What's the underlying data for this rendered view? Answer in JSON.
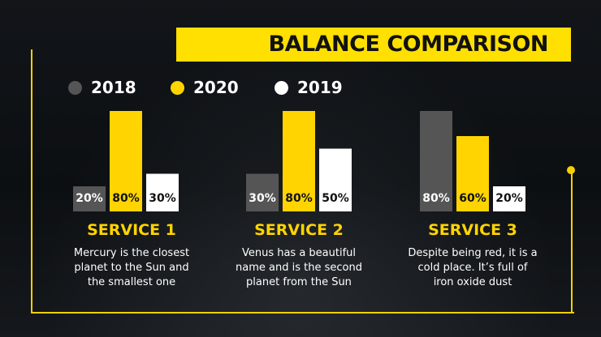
{
  "slide": {
    "title": "BALANCE COMPARISON",
    "colors": {
      "accent": "#ffd400",
      "title_bar": "#ffe000",
      "gray": "#555555",
      "white": "#ffffff",
      "background": "#0b0d10"
    }
  },
  "chart_data": {
    "type": "bar",
    "title": "BALANCE COMPARISON",
    "categories": [
      "SERVICE 1",
      "SERVICE 2",
      "SERVICE 3"
    ],
    "series": [
      {
        "name": "2018",
        "color": "#555555",
        "label_color": "#ffffff",
        "values": [
          20,
          30,
          80
        ],
        "labels": [
          "20%",
          "30%",
          "80%"
        ]
      },
      {
        "name": "2020",
        "color": "#ffd400",
        "label_color": "#111111",
        "values": [
          80,
          80,
          60
        ],
        "labels": [
          "80%",
          "80%",
          "60%"
        ]
      },
      {
        "name": "2019",
        "color": "#ffffff",
        "label_color": "#111111",
        "values": [
          30,
          50,
          20
        ],
        "labels": [
          "30%",
          "50%",
          "20%"
        ]
      }
    ],
    "ylim": [
      0,
      80
    ],
    "legend_position": "top-left"
  },
  "services": [
    {
      "title": "SERVICE 1",
      "description_lines": [
        "Mercury is the closest",
        "planet to the Sun and",
        "the smallest one"
      ]
    },
    {
      "title": "SERVICE 2",
      "description_lines": [
        "Venus has a beautiful",
        "name and is the second",
        "planet from the Sun"
      ]
    },
    {
      "title": "SERVICE 3",
      "description_lines": [
        "Despite being red, it is a",
        "cold place. It’s full of",
        "iron oxide dust"
      ]
    }
  ]
}
